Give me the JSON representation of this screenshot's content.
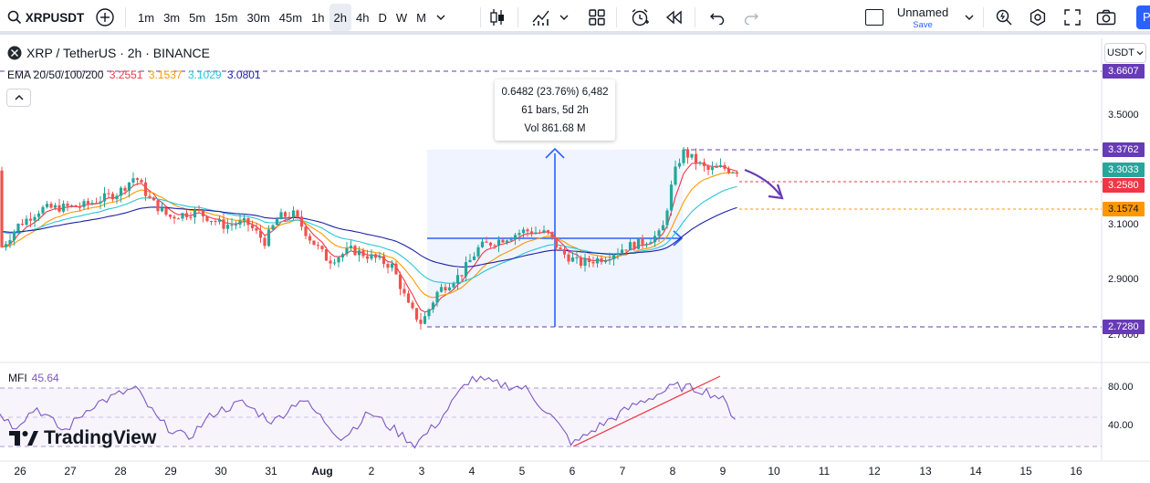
{
  "toolbar": {
    "symbol": "XRPUSDT",
    "intervals": [
      "1m",
      "3m",
      "5m",
      "15m",
      "30m",
      "45m",
      "1h",
      "2h",
      "4h",
      "D",
      "W",
      "M"
    ],
    "active_interval": "2h",
    "layout_name": "Unnamed",
    "layout_save": "Save",
    "publish_label": "Pu"
  },
  "legend": {
    "symbol_line": "XRP / TetherUS · 2h · BINANCE",
    "ema_label": "EMA 20/50/100/200",
    "ema_values": [
      {
        "value": "3.2551",
        "color": "#f23645"
      },
      {
        "value": "3.1537",
        "color": "#ff9800"
      },
      {
        "value": "3.1029",
        "color": "#26c6da"
      },
      {
        "value": "3.0801",
        "color": "#1e22aa"
      }
    ]
  },
  "measure": {
    "line1": "0.6482 (23.76%) 6,482",
    "line2": "61 bars, 5d 2h",
    "line3": "Vol 861.68 M"
  },
  "price_scale": {
    "currency": "USDT",
    "ticks": [
      "3.5000",
      "3.1000",
      "2.9000"
    ],
    "partial_ticks": [
      "2.7000"
    ],
    "labels": [
      {
        "value": "3.6607",
        "color": "#673ab7"
      },
      {
        "value": "3.3762",
        "color": "#673ab7"
      },
      {
        "value": "3.3033",
        "color": "#26a69a"
      },
      {
        "value": "3.2580",
        "color": "#f23645"
      },
      {
        "value": "3.1574",
        "color": "#ff9800"
      },
      {
        "value": "2.7280",
        "color": "#673ab7"
      }
    ]
  },
  "mfi": {
    "label": "MFI",
    "value": "45.64",
    "ticks": [
      "80.00",
      "40.00"
    ]
  },
  "time_axis": [
    "26",
    "27",
    "28",
    "29",
    "30",
    "31",
    "Aug",
    "2",
    "3",
    "4",
    "5",
    "6",
    "7",
    "8",
    "9",
    "10",
    "11",
    "12",
    "13",
    "14",
    "15",
    "16"
  ],
  "watermark": "TradingView",
  "colors": {
    "up": "#26a69a",
    "down": "#ef5350",
    "accent": "#2962ff",
    "drawing": "#673ab7",
    "mfi": "#7e57c2"
  }
}
